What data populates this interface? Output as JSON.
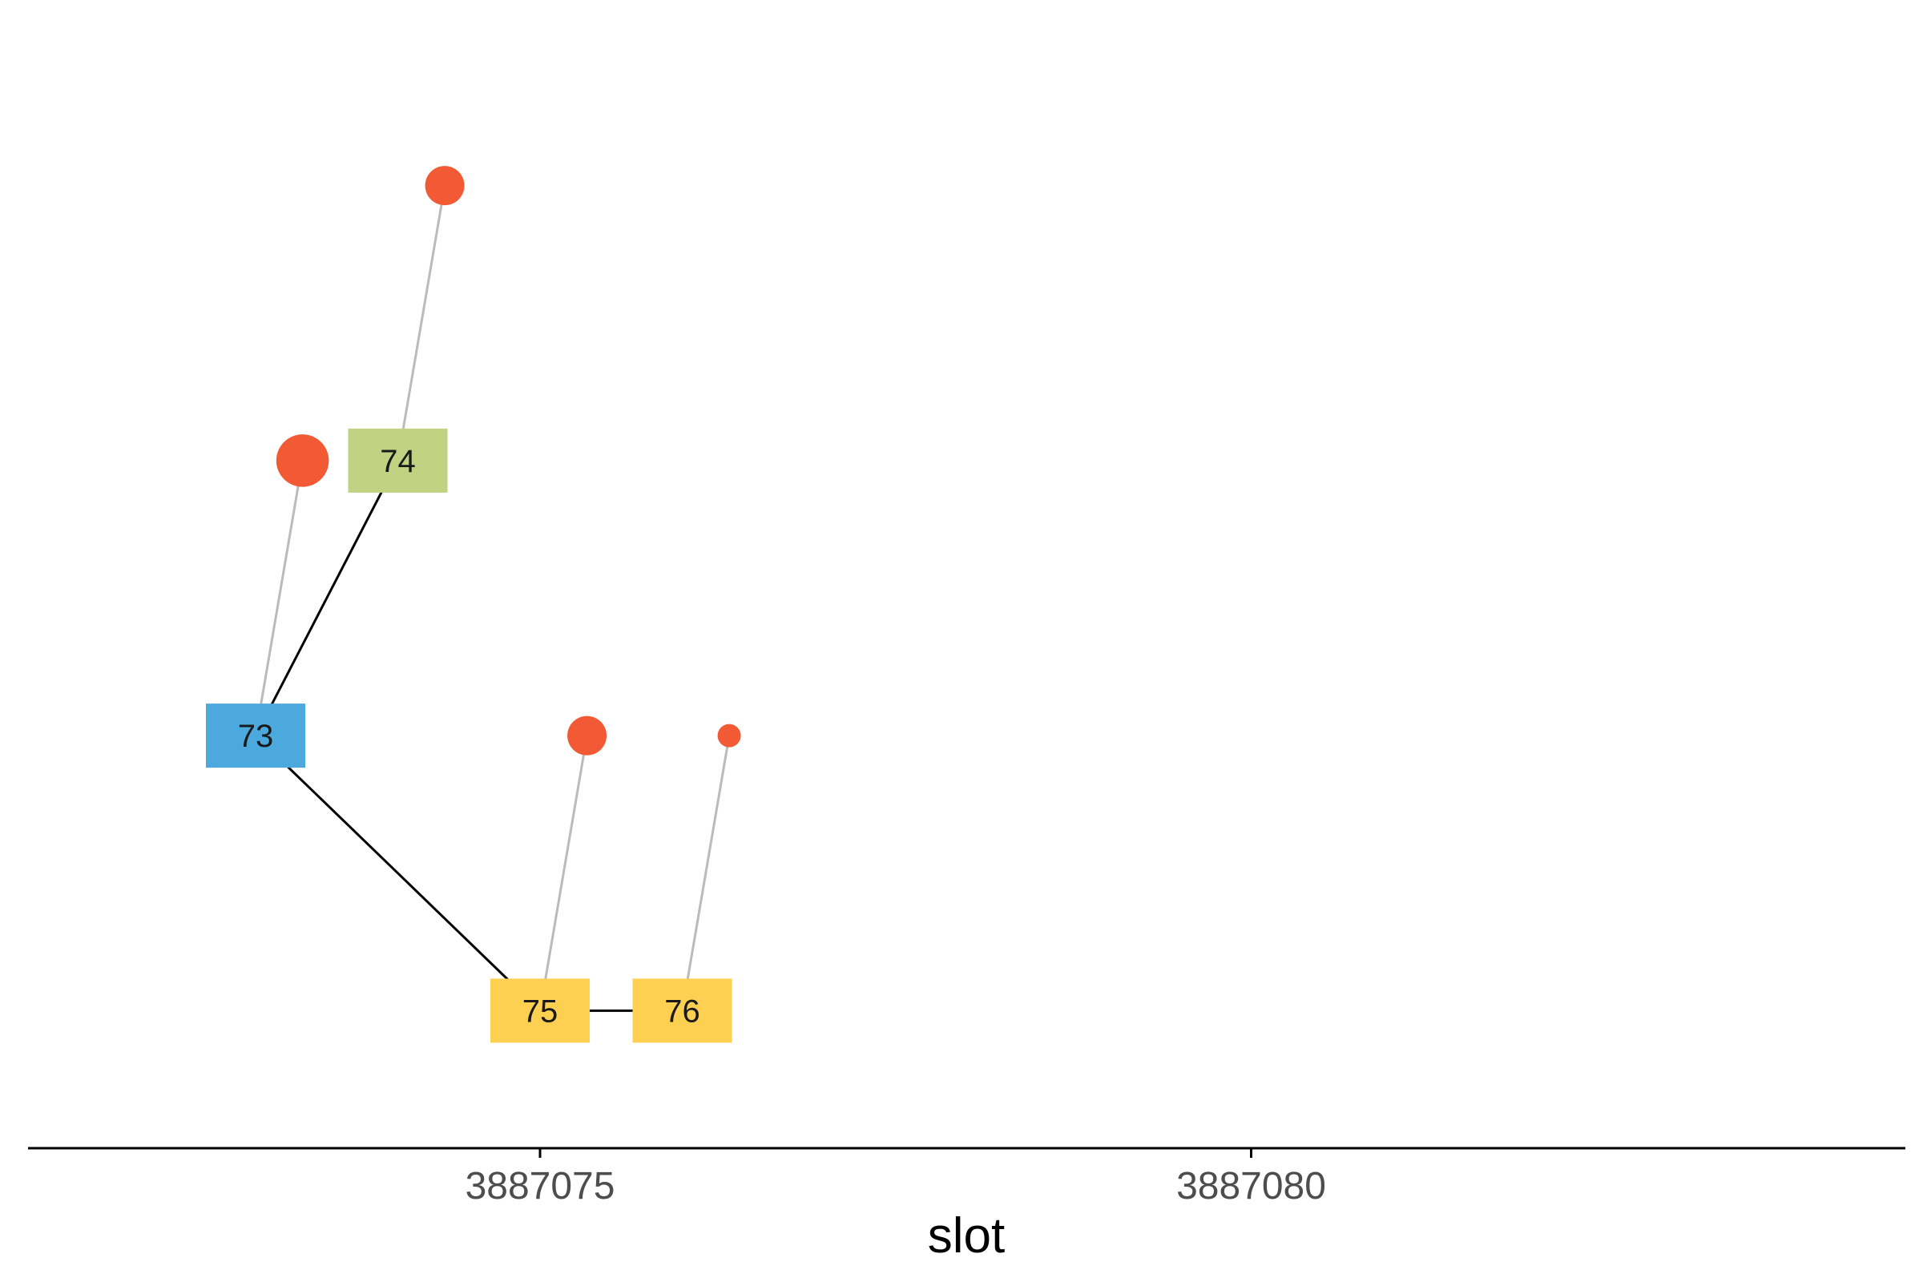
{
  "chart_data": {
    "type": "scatter",
    "xlabel": "slot",
    "ylabel": "",
    "xlim": [
      3887071.4,
      3887084.6
    ],
    "ylim": [
      0,
      8
    ],
    "x_ticks": [
      3887075,
      3887080
    ],
    "x_tick_labels": [
      "3887075",
      "3887080"
    ],
    "grid": false,
    "nodes": [
      {
        "label": "73",
        "x": 3887073,
        "y": 3,
        "color": "#4BA9DE"
      },
      {
        "label": "74",
        "x": 3887074,
        "y": 5,
        "color": "#C2D283"
      },
      {
        "label": "75",
        "x": 3887075,
        "y": 1,
        "color": "#FED052"
      },
      {
        "label": "76",
        "x": 3887076,
        "y": 1,
        "color": "#FED052"
      }
    ],
    "edges": [
      {
        "from": "73",
        "to": "74"
      },
      {
        "from": "73",
        "to": "75"
      },
      {
        "from": "75",
        "to": "76"
      }
    ],
    "points": [
      {
        "node": "73",
        "x": 3887073.33,
        "y": 5,
        "size": 8,
        "color": "#F15A35"
      },
      {
        "node": "74",
        "x": 3887074.33,
        "y": 7,
        "size": 4,
        "color": "#F15A35"
      },
      {
        "node": "75",
        "x": 3887075.33,
        "y": 3,
        "size": 4,
        "color": "#F15A35"
      },
      {
        "node": "76",
        "x": 3887076.33,
        "y": 3,
        "size": 1,
        "color": "#F15A35"
      }
    ],
    "colors": {
      "edge": "#000000",
      "stem": "#bbbbbb",
      "axis": "#000000"
    }
  }
}
